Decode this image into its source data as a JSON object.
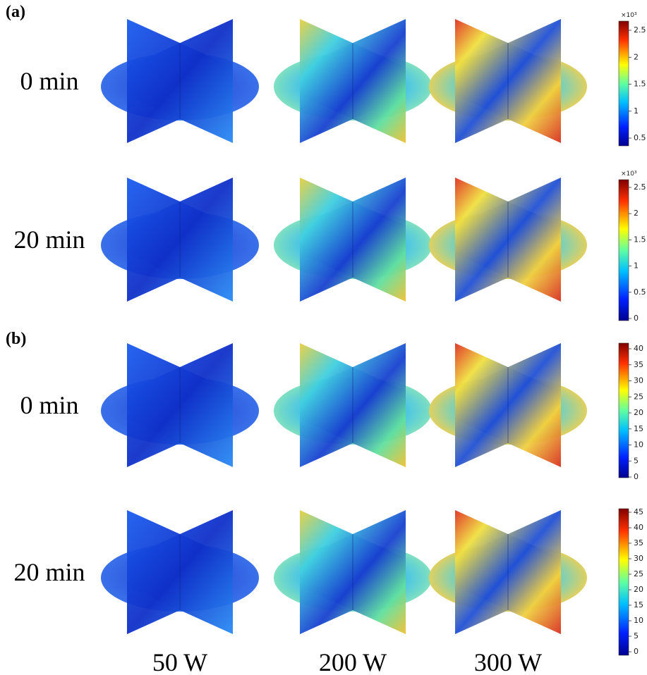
{
  "panels": [
    {
      "label": "(a)",
      "rows": [
        "0 min",
        "20 min"
      ],
      "colorbars": [
        {
          "exponent": "×10³",
          "ticks": [
            "0.5",
            "1",
            "1.5",
            "2",
            "2.5"
          ]
        },
        {
          "exponent": "×10³",
          "ticks": [
            "0",
            "0.5",
            "1",
            "1.5",
            "2",
            "2.5"
          ]
        }
      ]
    },
    {
      "label": "(b)",
      "rows": [
        "0 min",
        "20 min"
      ],
      "colorbars": [
        {
          "ticks": [
            "0",
            "5",
            "10",
            "15",
            "20",
            "25",
            "30",
            "35",
            "40"
          ]
        },
        {
          "ticks": [
            "0",
            "5",
            "10",
            "15",
            "20",
            "25",
            "30",
            "35",
            "40",
            "45"
          ]
        }
      ]
    }
  ],
  "columns": [
    "50 W",
    "200 W",
    "300 W"
  ]
}
